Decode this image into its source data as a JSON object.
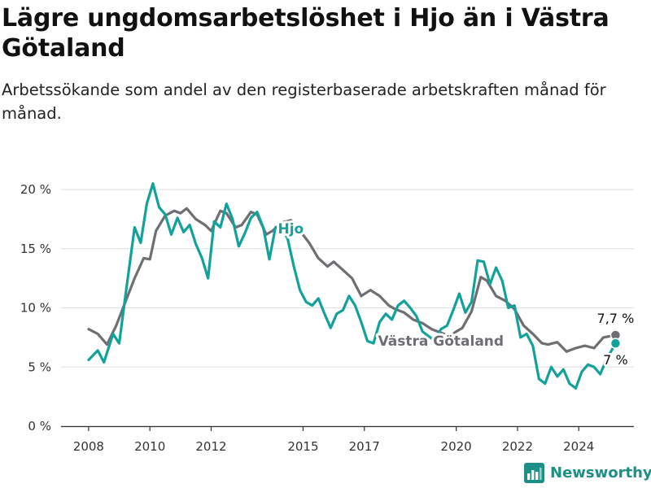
{
  "header": {
    "title": "Lägre ungdomsarbetslöshet i Hjo än i Västra Götaland",
    "subtitle": "Arbetssökande som andel av den registerbaserade arbetskraften månad för månad."
  },
  "branding": {
    "name": "Newsworthy"
  },
  "colors": {
    "hjo": "#12a29b",
    "vg": "#6f6f73",
    "grid": "#dedede",
    "axis": "#333333",
    "brand": "#1e8f86"
  },
  "chart_data": {
    "type": "line",
    "ylim": [
      0,
      20
    ],
    "y_ticks": [
      0,
      5,
      10,
      15,
      20
    ],
    "y_tick_labels": [
      "0 %",
      "5 %",
      "10 %",
      "15 %",
      "20 %"
    ],
    "x_ticks": [
      2008,
      2010,
      2012,
      2015,
      2017,
      2020,
      2022,
      2024
    ],
    "x_tick_labels": [
      "2008",
      "2010",
      "2012",
      "2015",
      "2017",
      "2020",
      "2022",
      "2024"
    ],
    "xlim": [
      2007.1,
      2025.8
    ],
    "series": [
      {
        "name": "Västra Götaland",
        "color": "#6f6f73",
        "end_label": "7,7 %",
        "points": [
          [
            2008.0,
            8.2
          ],
          [
            2008.3,
            7.8
          ],
          [
            2008.6,
            6.9
          ],
          [
            2008.9,
            8.5
          ],
          [
            2009.2,
            10.5
          ],
          [
            2009.5,
            12.5
          ],
          [
            2009.8,
            14.2
          ],
          [
            2010.0,
            14.1
          ],
          [
            2010.2,
            16.5
          ],
          [
            2010.5,
            17.8
          ],
          [
            2010.8,
            18.2
          ],
          [
            2011.0,
            18.0
          ],
          [
            2011.2,
            18.4
          ],
          [
            2011.5,
            17.5
          ],
          [
            2011.8,
            17.0
          ],
          [
            2012.0,
            16.5
          ],
          [
            2012.3,
            18.2
          ],
          [
            2012.5,
            18.0
          ],
          [
            2012.8,
            16.8
          ],
          [
            2013.0,
            17.0
          ],
          [
            2013.3,
            18.1
          ],
          [
            2013.5,
            17.9
          ],
          [
            2013.8,
            16.2
          ],
          [
            2014.0,
            16.5
          ],
          [
            2014.3,
            17.2
          ],
          [
            2014.6,
            17.4
          ],
          [
            2014.9,
            16.5
          ],
          [
            2015.2,
            15.5
          ],
          [
            2015.5,
            14.2
          ],
          [
            2015.8,
            13.5
          ],
          [
            2016.0,
            13.9
          ],
          [
            2016.3,
            13.2
          ],
          [
            2016.6,
            12.5
          ],
          [
            2016.9,
            11.0
          ],
          [
            2017.2,
            11.5
          ],
          [
            2017.5,
            11.0
          ],
          [
            2017.8,
            10.2
          ],
          [
            2018.0,
            9.9
          ],
          [
            2018.3,
            9.6
          ],
          [
            2018.6,
            9.0
          ],
          [
            2018.9,
            8.7
          ],
          [
            2019.2,
            8.2
          ],
          [
            2019.5,
            7.9
          ],
          [
            2019.8,
            7.6
          ],
          [
            2020.0,
            8.0
          ],
          [
            2020.2,
            8.3
          ],
          [
            2020.5,
            9.7
          ],
          [
            2020.8,
            12.6
          ],
          [
            2021.0,
            12.3
          ],
          [
            2021.3,
            11.0
          ],
          [
            2021.6,
            10.6
          ],
          [
            2021.9,
            9.9
          ],
          [
            2022.2,
            8.5
          ],
          [
            2022.5,
            7.8
          ],
          [
            2022.8,
            7.0
          ],
          [
            2023.0,
            6.9
          ],
          [
            2023.3,
            7.1
          ],
          [
            2023.6,
            6.3
          ],
          [
            2023.9,
            6.6
          ],
          [
            2024.2,
            6.8
          ],
          [
            2024.5,
            6.6
          ],
          [
            2024.8,
            7.5
          ],
          [
            2025.2,
            7.7
          ]
        ]
      },
      {
        "name": "Hjo",
        "color": "#12a29b",
        "end_label": "7 %",
        "points": [
          [
            2008.0,
            5.6
          ],
          [
            2008.3,
            6.4
          ],
          [
            2008.5,
            5.4
          ],
          [
            2008.8,
            7.8
          ],
          [
            2009.0,
            7.0
          ],
          [
            2009.2,
            11.0
          ],
          [
            2009.5,
            16.8
          ],
          [
            2009.7,
            15.5
          ],
          [
            2009.9,
            18.8
          ],
          [
            2010.1,
            20.5
          ],
          [
            2010.3,
            18.5
          ],
          [
            2010.5,
            17.9
          ],
          [
            2010.7,
            16.2
          ],
          [
            2010.9,
            17.6
          ],
          [
            2011.1,
            16.4
          ],
          [
            2011.3,
            17.0
          ],
          [
            2011.5,
            15.4
          ],
          [
            2011.7,
            14.2
          ],
          [
            2011.9,
            12.5
          ],
          [
            2012.1,
            17.3
          ],
          [
            2012.3,
            16.8
          ],
          [
            2012.5,
            18.8
          ],
          [
            2012.7,
            17.5
          ],
          [
            2012.9,
            15.2
          ],
          [
            2013.1,
            16.3
          ],
          [
            2013.3,
            17.6
          ],
          [
            2013.5,
            18.1
          ],
          [
            2013.7,
            16.8
          ],
          [
            2013.9,
            14.1
          ],
          [
            2014.1,
            16.8
          ],
          [
            2014.3,
            16.9
          ],
          [
            2014.5,
            15.8
          ],
          [
            2014.7,
            13.5
          ],
          [
            2014.9,
            11.5
          ],
          [
            2015.1,
            10.5
          ],
          [
            2015.3,
            10.2
          ],
          [
            2015.5,
            10.8
          ],
          [
            2015.7,
            9.5
          ],
          [
            2015.9,
            8.3
          ],
          [
            2016.1,
            9.5
          ],
          [
            2016.3,
            9.8
          ],
          [
            2016.5,
            11.0
          ],
          [
            2016.7,
            10.2
          ],
          [
            2016.9,
            8.8
          ],
          [
            2017.1,
            7.2
          ],
          [
            2017.3,
            7.0
          ],
          [
            2017.5,
            8.8
          ],
          [
            2017.7,
            9.5
          ],
          [
            2017.9,
            9.0
          ],
          [
            2018.1,
            10.2
          ],
          [
            2018.3,
            10.6
          ],
          [
            2018.5,
            10.0
          ],
          [
            2018.7,
            9.3
          ],
          [
            2018.9,
            8.0
          ],
          [
            2019.1,
            7.6
          ],
          [
            2019.3,
            7.2
          ],
          [
            2019.5,
            8.2
          ],
          [
            2019.7,
            8.5
          ],
          [
            2019.9,
            9.8
          ],
          [
            2020.1,
            11.2
          ],
          [
            2020.3,
            9.6
          ],
          [
            2020.5,
            10.5
          ],
          [
            2020.7,
            14.0
          ],
          [
            2020.9,
            13.9
          ],
          [
            2021.1,
            12.0
          ],
          [
            2021.3,
            13.4
          ],
          [
            2021.5,
            12.3
          ],
          [
            2021.7,
            10.0
          ],
          [
            2021.9,
            10.2
          ],
          [
            2022.1,
            7.5
          ],
          [
            2022.3,
            7.8
          ],
          [
            2022.5,
            6.8
          ],
          [
            2022.7,
            4.0
          ],
          [
            2022.9,
            3.6
          ],
          [
            2023.1,
            5.0
          ],
          [
            2023.3,
            4.2
          ],
          [
            2023.5,
            4.8
          ],
          [
            2023.7,
            3.6
          ],
          [
            2023.9,
            3.2
          ],
          [
            2024.1,
            4.6
          ],
          [
            2024.3,
            5.2
          ],
          [
            2024.5,
            5.0
          ],
          [
            2024.7,
            4.4
          ],
          [
            2024.9,
            5.6
          ],
          [
            2025.2,
            7.0
          ]
        ]
      }
    ],
    "annotations": [
      {
        "text": "Hjo",
        "series": "Hjo",
        "x": 2014.6,
        "y": 16.3
      },
      {
        "text": "Västra Götaland",
        "series": "Västra Götaland",
        "x": 2019.5,
        "y": 6.8
      }
    ]
  }
}
